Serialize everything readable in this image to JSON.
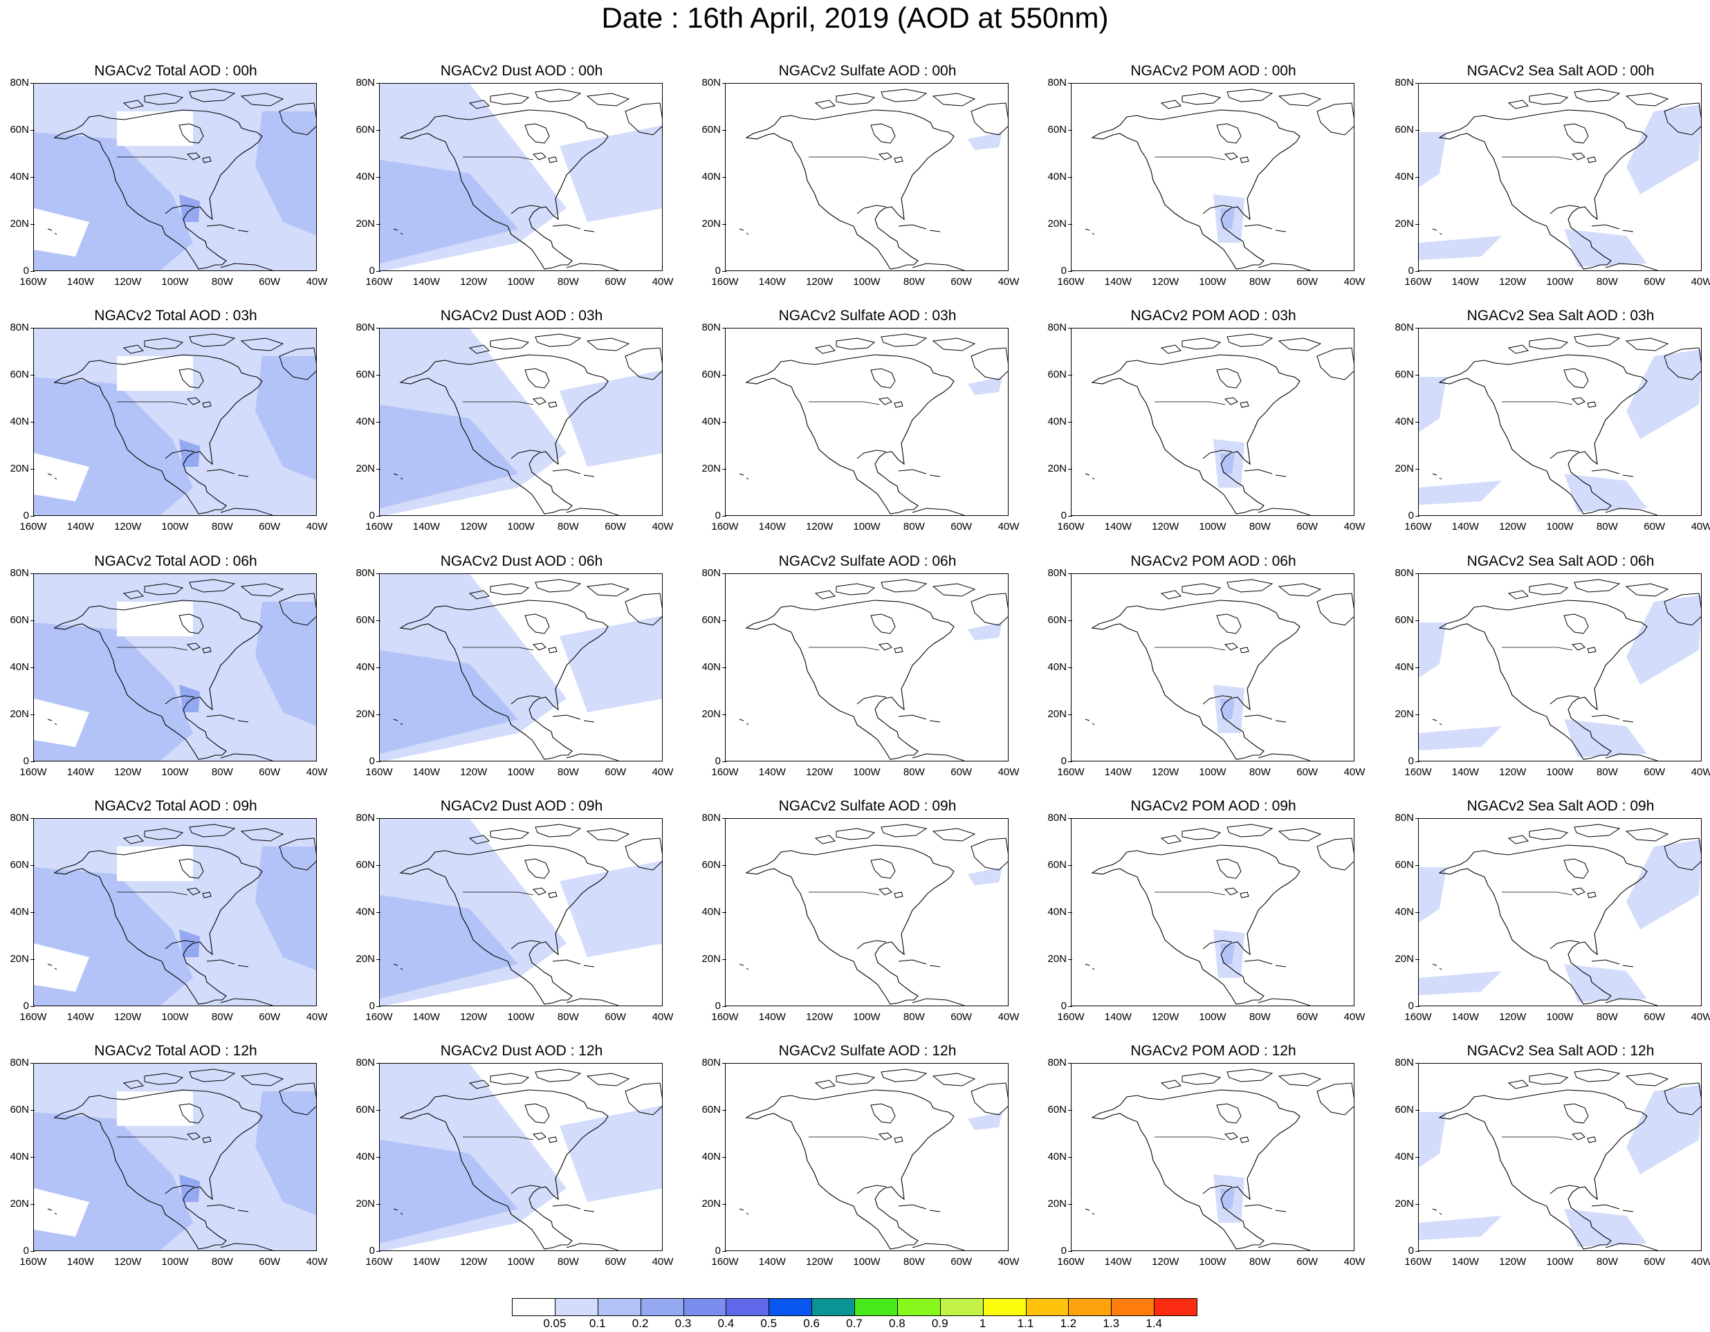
{
  "title": "Date : 16th April, 2019 (AOD at 550nm)",
  "y_ticks": [
    "80N",
    "60N",
    "40N",
    "20N",
    "0"
  ],
  "x_ticks": [
    "160W",
    "140W",
    "120W",
    "100W",
    "80W",
    "60W",
    "40W"
  ],
  "columns": [
    "total",
    "dust",
    "sulfate",
    "pom",
    "seasalt"
  ],
  "panel_titles": [
    [
      "NGACv2 Total AOD : 00h",
      "NGACv2 Dust AOD : 00h",
      "NGACv2 Sulfate AOD : 00h",
      "NGACv2 POM AOD : 00h",
      "NGACv2 Sea Salt AOD : 00h"
    ],
    [
      "NGACv2 Total AOD : 03h",
      "NGACv2 Dust AOD : 03h",
      "NGACv2 Sulfate AOD : 03h",
      "NGACv2 POM AOD : 03h",
      "NGACv2 Sea Salt AOD : 03h"
    ],
    [
      "NGACv2 Total AOD : 06h",
      "NGACv2 Dust AOD : 06h",
      "NGACv2 Sulfate AOD : 06h",
      "NGACv2 POM AOD : 06h",
      "NGACv2 Sea Salt AOD : 06h"
    ],
    [
      "NGACv2 Total AOD : 09h",
      "NGACv2 Dust AOD : 09h",
      "NGACv2 Sulfate AOD : 09h",
      "NGACv2 POM AOD : 09h",
      "NGACv2 Sea Salt  AOD : 09h"
    ],
    [
      "NGACv2 Total AOD  : 12h",
      "NGACv2 Dust AOD : 12h",
      "NGACv2 Sulfate AOD : 12h",
      "NGACv2 POM  AOD : 12h",
      "NGACv2 Sea Salt  AOD : 12h"
    ]
  ],
  "colorbar": {
    "labels": [
      "0.05",
      "0.1",
      "0.2",
      "0.3",
      "0.4",
      "0.5",
      "0.6",
      "0.7",
      "0.8",
      "0.9",
      "1",
      "1.1",
      "1.2",
      "1.3",
      "1.4"
    ],
    "colors": [
      "#ffffff",
      "#d3dcfa",
      "#b4c3f7",
      "#95a9f3",
      "#7b8ef0",
      "#6169eb",
      "#0a56f0",
      "#0a9494",
      "#48e91a",
      "#87f71c",
      "#c2f246",
      "#fcfc0c",
      "#fcc20c",
      "#fca20c",
      "#fc7d0c",
      "#fc2c12"
    ]
  }
}
